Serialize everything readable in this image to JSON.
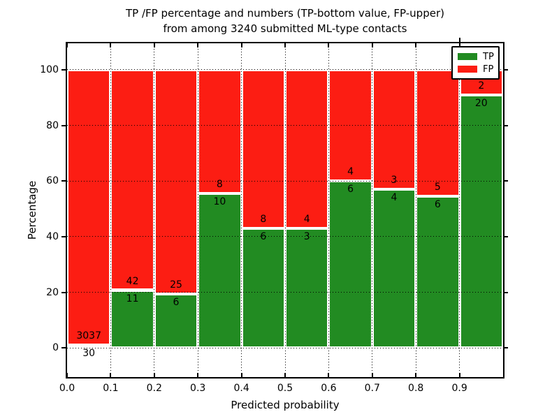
{
  "chart_data": {
    "type": "bar",
    "stacked": true,
    "normalized_to_percent": true,
    "title_lines": [
      "TP /FP percentage and numbers (TP-bottom value, FP-upper)",
      "from among 3240 submitted ML-type contacts"
    ],
    "xlabel": "Predicted probability",
    "ylabel": "Percentage",
    "total_contacts": 3240,
    "xlim": [
      0.0,
      1.0
    ],
    "ylim": [
      -10.5,
      109.5
    ],
    "x_tick_values": [
      0.0,
      0.1,
      0.2,
      0.3,
      0.4,
      0.5,
      0.6,
      0.7,
      0.8,
      0.9
    ],
    "x_tick_labels": [
      "0.0",
      "0.1",
      "0.2",
      "0.3",
      "0.4",
      "0.5",
      "0.6",
      "0.7",
      "0.8",
      "0.9"
    ],
    "y_tick_values": [
      0,
      20,
      40,
      60,
      80,
      100
    ],
    "y_tick_labels": [
      "0",
      "20",
      "40",
      "60",
      "80",
      "100"
    ],
    "grid_style": "dotted",
    "bin_width": 0.1,
    "bin_starts": [
      0.0,
      0.1,
      0.2,
      0.3,
      0.4,
      0.5,
      0.6,
      0.7,
      0.8,
      0.9
    ],
    "series": [
      {
        "name": "TP",
        "color": "#228b22",
        "values": [
          30,
          11,
          6,
          10,
          6,
          3,
          6,
          4,
          6,
          20
        ]
      },
      {
        "name": "FP",
        "color": "#fc1d13",
        "values": [
          3037,
          42,
          25,
          8,
          8,
          4,
          4,
          3,
          5,
          2
        ]
      }
    ],
    "bar_edge_color": "#ffffff",
    "legend": {
      "position": "upper-right",
      "entries": [
        {
          "label": "TP",
          "color": "#228b22"
        },
        {
          "label": "FP",
          "color": "#fc1d13"
        }
      ]
    }
  }
}
